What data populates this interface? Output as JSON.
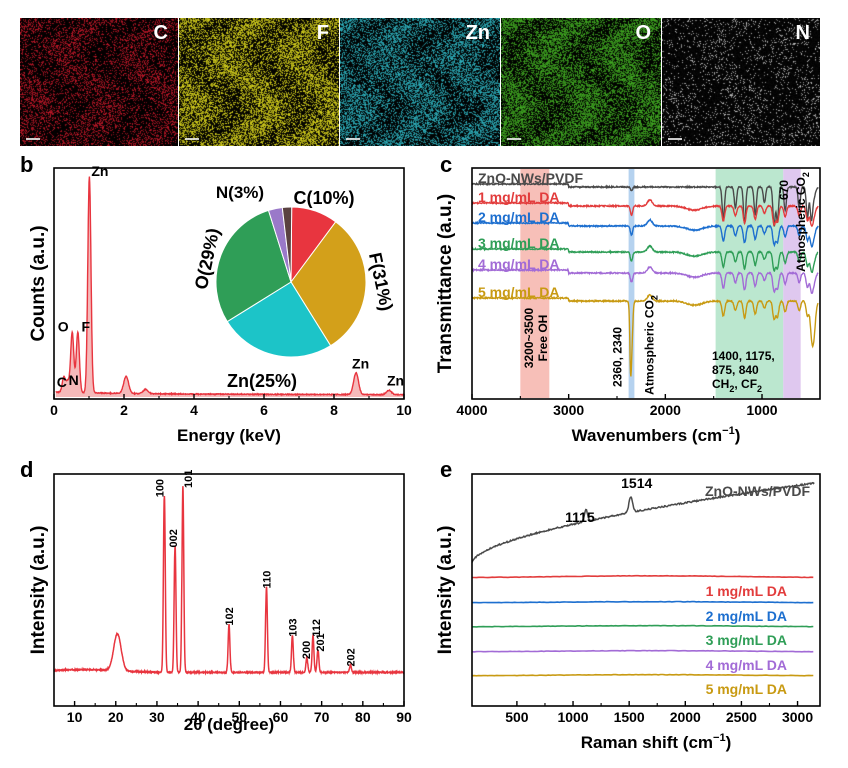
{
  "panel_letters": {
    "a": "a",
    "b": "b",
    "c": "c",
    "d": "d",
    "e": "e"
  },
  "maps": [
    {
      "label": "C",
      "color": "#c8182a"
    },
    {
      "label": "F",
      "color": "#e1dc1e"
    },
    {
      "label": "Zn",
      "color": "#2fb7c4"
    },
    {
      "label": "O",
      "color": "#43b023"
    },
    {
      "label": "N",
      "color": "#c8c8c8"
    }
  ],
  "chart_data": [
    {
      "panel": "b",
      "type": "line",
      "xlabel": "Energy (keV)",
      "ylabel": "Counts (a.u.)",
      "xlim": [
        0,
        10
      ],
      "xticks": [
        0,
        2,
        4,
        6,
        8,
        10
      ],
      "color": "#e8353f",
      "peaks": [
        {
          "label": "C",
          "x": 0.28,
          "y": 0.07
        },
        {
          "label": "N",
          "x": 0.39,
          "y": 0.05
        },
        {
          "label": "O",
          "x": 0.52,
          "y": 0.28
        },
        {
          "label": "F",
          "x": 0.68,
          "y": 0.28
        },
        {
          "label": "Zn",
          "x": 1.01,
          "y": 1.0
        },
        {
          "label": "",
          "x": 2.06,
          "y": 0.08
        },
        {
          "label": "",
          "x": 2.62,
          "y": 0.02
        },
        {
          "label": "Zn",
          "x": 8.63,
          "y": 0.1
        },
        {
          "label": "Zn",
          "x": 9.57,
          "y": 0.02
        }
      ],
      "inset_pie": {
        "slices": [
          {
            "label": "C(10%)",
            "value": 10,
            "color": "#e8353f"
          },
          {
            "label": "F(31%)",
            "value": 31,
            "color": "#d3a01a"
          },
          {
            "label": "Zn(25%)",
            "value": 25,
            "color": "#1cc4c8"
          },
          {
            "label": "O(29%)",
            "value": 29,
            "color": "#2f9e57"
          },
          {
            "label": "N(3%)",
            "value": 3,
            "color": "#9a79c9"
          },
          {
            "label": "",
            "value": 2,
            "color": "#5a4141"
          }
        ]
      }
    },
    {
      "panel": "c",
      "type": "line",
      "xlabel": "Wavenumbers (cm",
      "xlabel_sup": "−1",
      "xlabel_end": ")",
      "ylabel": "Transmittance (a.u.)",
      "xlim": [
        4000,
        400
      ],
      "xticks": [
        4000,
        3000,
        2000,
        1000
      ],
      "series": [
        {
          "name": "ZnO-NWs/PVDF",
          "color": "#4a4a4a",
          "offset": 0
        },
        {
          "name": "1 mg/mL DA",
          "color": "#e23c3c",
          "offset": 1
        },
        {
          "name": "2 mg/mL DA",
          "color": "#1d6fcf",
          "offset": 2
        },
        {
          "name": "3 mg/mL DA",
          "color": "#2f9e57",
          "offset": 3
        },
        {
          "name": "4 mg/mL DA",
          "color": "#a26bd6",
          "offset": 4
        },
        {
          "name": "5 mg/mL DA",
          "color": "#c89a12",
          "offset": 5
        }
      ],
      "bands": [
        {
          "from": 3500,
          "to": 3200,
          "color": "#f4a9a0",
          "label1": "3200~3500",
          "label2": "Free OH"
        },
        {
          "from": 2380,
          "to": 2320,
          "color": "#9cc3ea",
          "label1": "2360, 2340",
          "label2": "Atmospheric CO",
          "label2_sub": "2"
        },
        {
          "from": 1480,
          "to": 780,
          "color": "#a4dfbf",
          "label1": "1400, 1175,",
          "label2": "875, 840",
          "label3": "CH",
          "label3_sub": "2",
          "label3_mid": ", CF",
          "label3_sub2": "2"
        },
        {
          "from": 780,
          "to": 600,
          "color": "#d4b6ea",
          "label1": "670",
          "label2": "Atmospheric CO",
          "label2_sub": "2"
        }
      ]
    },
    {
      "panel": "d",
      "type": "line",
      "xlabel": "2θ (degree)",
      "ylabel": "Intensity (a.u.)",
      "xlim": [
        5,
        90
      ],
      "xticks": [
        10,
        20,
        30,
        40,
        50,
        60,
        70,
        80,
        90
      ],
      "color": "#e8353f",
      "peaks": [
        {
          "label": "",
          "x": 20.4,
          "y": 0.2
        },
        {
          "label": "100",
          "x": 31.8,
          "y": 0.95
        },
        {
          "label": "002",
          "x": 34.4,
          "y": 0.68
        },
        {
          "label": "101",
          "x": 36.3,
          "y": 1.0
        },
        {
          "label": "102",
          "x": 47.5,
          "y": 0.26
        },
        {
          "label": "110",
          "x": 56.6,
          "y": 0.46
        },
        {
          "label": "103",
          "x": 62.9,
          "y": 0.2
        },
        {
          "label": "200",
          "x": 66.4,
          "y": 0.08
        },
        {
          "label": "112",
          "x": 67.9,
          "y": 0.2
        },
        {
          "label": "201",
          "x": 69.1,
          "y": 0.12
        },
        {
          "label": "202",
          "x": 77.0,
          "y": 0.04
        }
      ]
    },
    {
      "panel": "e",
      "type": "line",
      "xlabel": "Raman shift (cm",
      "xlabel_sup": "−1",
      "xlabel_end": ")",
      "ylabel": "Intensity (a.u.)",
      "xlim": [
        100,
        3200
      ],
      "xticks": [
        500,
        1000,
        1500,
        2000,
        2500,
        3000
      ],
      "peak_labels": [
        "1115",
        "1514"
      ],
      "series": [
        {
          "name": "ZnO-NWs/PVDF",
          "color": "#4a4a4a"
        },
        {
          "name": "1 mg/mL DA",
          "color": "#e23c3c"
        },
        {
          "name": "2 mg/mL DA",
          "color": "#1d6fcf"
        },
        {
          "name": "3 mg/mL DA",
          "color": "#2f9e57"
        },
        {
          "name": "4 mg/mL DA",
          "color": "#a26bd6"
        },
        {
          "name": "5 mg/mL DA",
          "color": "#c89a12"
        }
      ]
    }
  ]
}
